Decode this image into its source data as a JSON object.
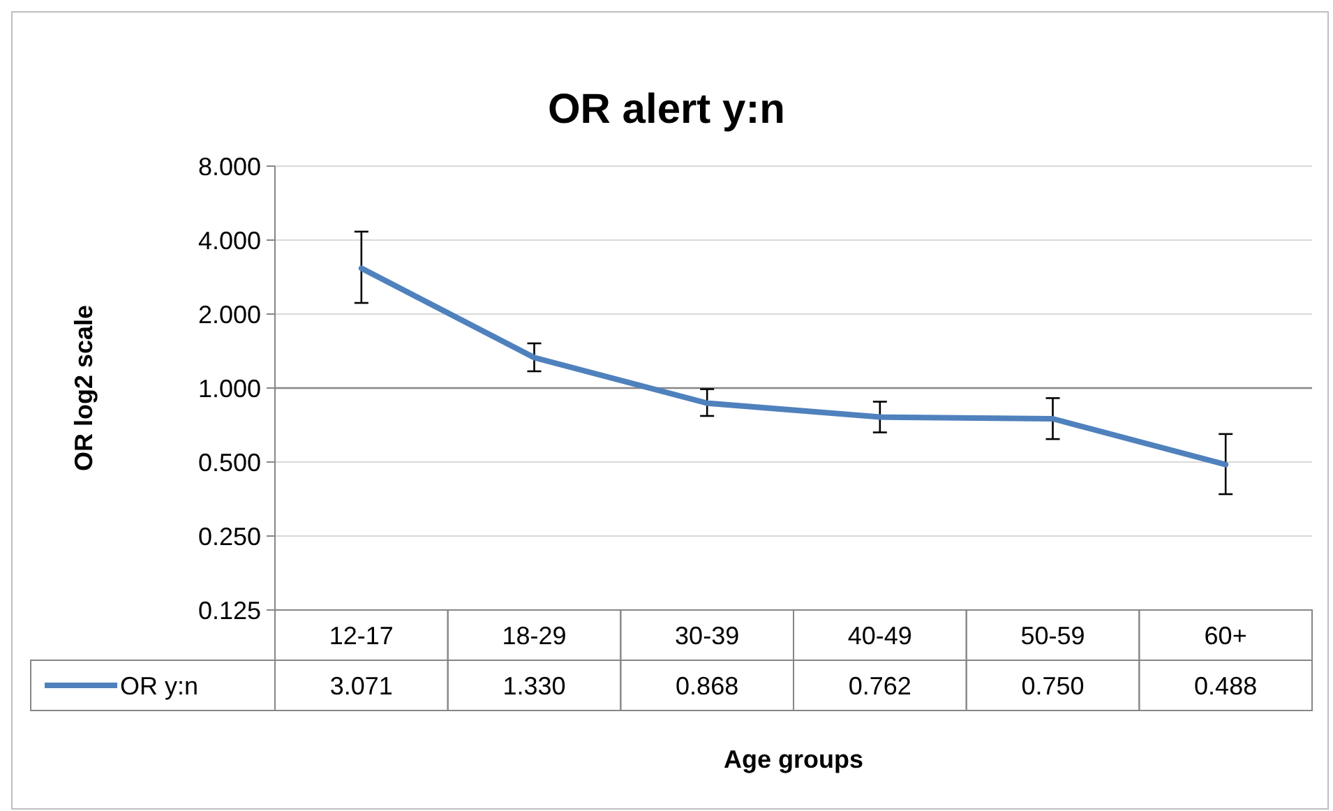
{
  "chart_data": {
    "type": "line",
    "title": "OR alert y:n",
    "xlabel": "Age groups",
    "ylabel": "OR log2 scale",
    "categories": [
      "12-17",
      "18-29",
      "30-39",
      "40-49",
      "50-59",
      "60+"
    ],
    "series": [
      {
        "name": "OR y:n",
        "color": "#4f81bd",
        "values": [
          3.071,
          1.33,
          0.868,
          0.762,
          0.75,
          0.488
        ],
        "value_labels": [
          "3.071",
          "1.330",
          "0.868",
          "0.762",
          "0.750",
          "0.488"
        ],
        "errors": [
          [
            2.22,
            4.33
          ],
          [
            1.17,
            1.52
          ],
          [
            0.77,
            0.99
          ],
          [
            0.66,
            0.88
          ],
          [
            0.62,
            0.91
          ],
          [
            0.37,
            0.65
          ]
        ]
      }
    ],
    "ylim": [
      0.125,
      8
    ],
    "yticks": [
      {
        "value": 0.125,
        "label": "0.125"
      },
      {
        "value": 0.25,
        "label": "0.250"
      },
      {
        "value": 0.5,
        "label": "0.500"
      },
      {
        "value": 1,
        "label": "1.000"
      },
      {
        "value": 2,
        "label": "2.000"
      },
      {
        "value": 4,
        "label": "4.000"
      },
      {
        "value": 8,
        "label": "8.000"
      }
    ],
    "log": "y",
    "grid": "y",
    "legend": "bottom",
    "marker": "none",
    "line_style": "solid",
    "ref_lines": [
      {
        "axis": "y",
        "value": 1,
        "color": "#868686"
      }
    ]
  }
}
